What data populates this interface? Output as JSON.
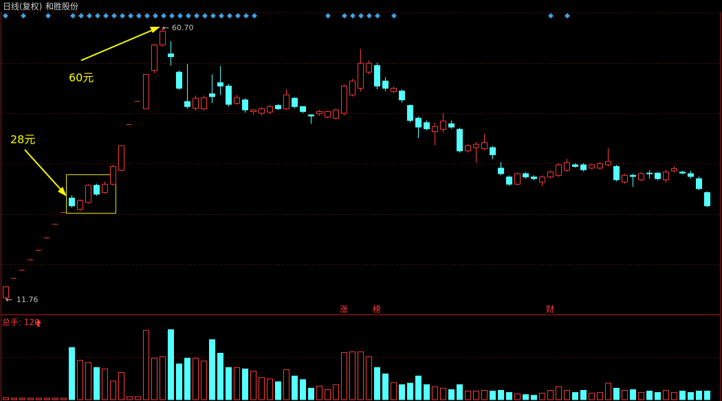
{
  "chart_data": {
    "type": "candlestick",
    "period": "日线(复权)",
    "title": "和胜股份",
    "up_color": "#ff3b3b",
    "down_color": "#54ffff",
    "ylim": [
      10,
      62
    ],
    "open": [
      12.0,
      15.6,
      17.07,
      18.93,
      20.66,
      22.88,
      25.36,
      27.46,
      30.0,
      27.95,
      29.2,
      32.3,
      31.0,
      32.5,
      35.0,
      43.3,
      47.5,
      46.1,
      53.0,
      57.6,
      56.0,
      52.7,
      47.4,
      46.2,
      46.1,
      48.8,
      50.8,
      50.2,
      47.1,
      47.7,
      45.6,
      45.3,
      45.5,
      46.7,
      46.1,
      48.0,
      46.5,
      45.0,
      45.2,
      44.6,
      44.4,
      45.3,
      48.6,
      49.8,
      52.7,
      53.9,
      51.1,
      49.2,
      49.3,
      46.7,
      44.4,
      43.6,
      42.0,
      42.4,
      43.4,
      42.4,
      38.5,
      39.1,
      38.9,
      39.1,
      35.4,
      33.8,
      32.5,
      34.4,
      33.8,
      32.9,
      33.8,
      34.1,
      35.0,
      36.0,
      36.0,
      35.4,
      35.4,
      36.0,
      35.7,
      32.9,
      34.1,
      33.3,
      34.5,
      34.5,
      33.3,
      34.9,
      34.7,
      34.4,
      33.5,
      31.0
    ],
    "high": [
      14.1,
      15.6,
      17.07,
      18.93,
      20.66,
      22.88,
      25.36,
      27.46,
      30.5,
      29.8,
      32.5,
      32.6,
      33.0,
      36.0,
      39.5,
      43.3,
      47.5,
      52.3,
      57.8,
      60.7,
      58.3,
      53.0,
      54.2,
      48.5,
      48.5,
      52.3,
      53.8,
      50.6,
      48.6,
      48.0,
      46.0,
      46.4,
      46.8,
      47.0,
      49.6,
      48.2,
      46.5,
      45.1,
      45.9,
      45.7,
      46.1,
      50.5,
      51.5,
      56.9,
      54.8,
      54.4,
      51.8,
      50.1,
      49.6,
      46.9,
      44.7,
      44.0,
      43.6,
      45.3,
      44.0,
      42.7,
      39.7,
      40.1,
      41.6,
      39.4,
      36.5,
      34.1,
      34.6,
      34.7,
      34.1,
      34.1,
      35.0,
      36.3,
      37.1,
      36.3,
      36.3,
      36.2,
      36.5,
      39.0,
      36.0,
      34.4,
      34.4,
      34.7,
      35.0,
      34.7,
      35.1,
      35.8,
      34.9,
      34.9,
      33.9,
      31.2
    ],
    "low": [
      11.76,
      15.6,
      17.07,
      18.93,
      20.66,
      22.88,
      25.36,
      27.46,
      28.3,
      27.7,
      29.0,
      30.4,
      30.8,
      32.3,
      34.8,
      43.3,
      47.5,
      46.1,
      52.5,
      57.3,
      53.9,
      49.5,
      46.1,
      45.8,
      45.8,
      47.1,
      48.6,
      46.5,
      46.8,
      45.4,
      45.0,
      44.9,
      45.2,
      45.9,
      45.9,
      46.2,
      45.3,
      43.4,
      44.8,
      44.4,
      44.2,
      44.9,
      48.3,
      49.2,
      52.3,
      49.6,
      49.3,
      48.9,
      47.2,
      43.6,
      40.8,
      42.2,
      39.5,
      41.8,
      42.5,
      38.2,
      38.2,
      36.4,
      38.6,
      37.0,
      34.1,
      32.2,
      32.3,
      33.5,
      33.2,
      32.1,
      33.5,
      33.8,
      34.7,
      35.5,
      34.8,
      35.2,
      35.1,
      35.7,
      33.0,
      32.6,
      32.0,
      33.0,
      33.5,
      33.2,
      32.8,
      34.6,
      34.3,
      33.5,
      31.4,
      28.4
    ],
    "close": [
      14.0,
      15.6,
      17.07,
      18.93,
      20.66,
      22.88,
      25.36,
      27.46,
      28.6,
      29.56,
      32.3,
      30.7,
      32.5,
      35.7,
      39.45,
      43.3,
      47.5,
      52.3,
      57.6,
      60.1,
      55.5,
      49.8,
      46.5,
      48.0,
      48.1,
      48.3,
      50.2,
      46.9,
      48.1,
      45.9,
      45.9,
      46.1,
      46.5,
      46.1,
      48.6,
      46.5,
      45.6,
      44.8,
      45.6,
      45.6,
      45.9,
      50.2,
      51.1,
      54.3,
      54.3,
      50.2,
      49.8,
      49.8,
      47.7,
      44.0,
      42.8,
      42.5,
      42.9,
      43.9,
      42.8,
      38.5,
      39.45,
      39.7,
      40.0,
      37.8,
      34.4,
      32.5,
      34.4,
      33.8,
      33.5,
      33.8,
      34.7,
      36.0,
      36.4,
      35.7,
      35.1,
      36.0,
      36.2,
      36.6,
      33.3,
      34.1,
      33.9,
      34.4,
      34.4,
      33.5,
      34.7,
      35.3,
      34.5,
      33.9,
      31.7,
      28.6
    ],
    "price_labels": [
      "60.70",
      "11.76"
    ],
    "annotations": [
      {
        "text": "60元"
      },
      {
        "text": "28元"
      }
    ],
    "events": [
      "涨",
      "榜",
      "财"
    ],
    "volume": {
      "label": "总手: 120",
      "ylim": [
        0,
        100
      ],
      "values": [
        3,
        2,
        2,
        2,
        2,
        2,
        2,
        2,
        73,
        55,
        52,
        45,
        43,
        26,
        38,
        4,
        4,
        97,
        58,
        60,
        98,
        50,
        58,
        58,
        54,
        84,
        65,
        45,
        45,
        43,
        40,
        31,
        29,
        25,
        42,
        33,
        28,
        16,
        19,
        14,
        21,
        66,
        67,
        67,
        60,
        45,
        36,
        24,
        21,
        23,
        33,
        21,
        18,
        16,
        14,
        21,
        12,
        12,
        13,
        12,
        13,
        10,
        8,
        7,
        6,
        9,
        13,
        18,
        13,
        10,
        13,
        9,
        10,
        23,
        16,
        13,
        14,
        10,
        12,
        10,
        13,
        10,
        12,
        10,
        12,
        12
      ]
    }
  }
}
